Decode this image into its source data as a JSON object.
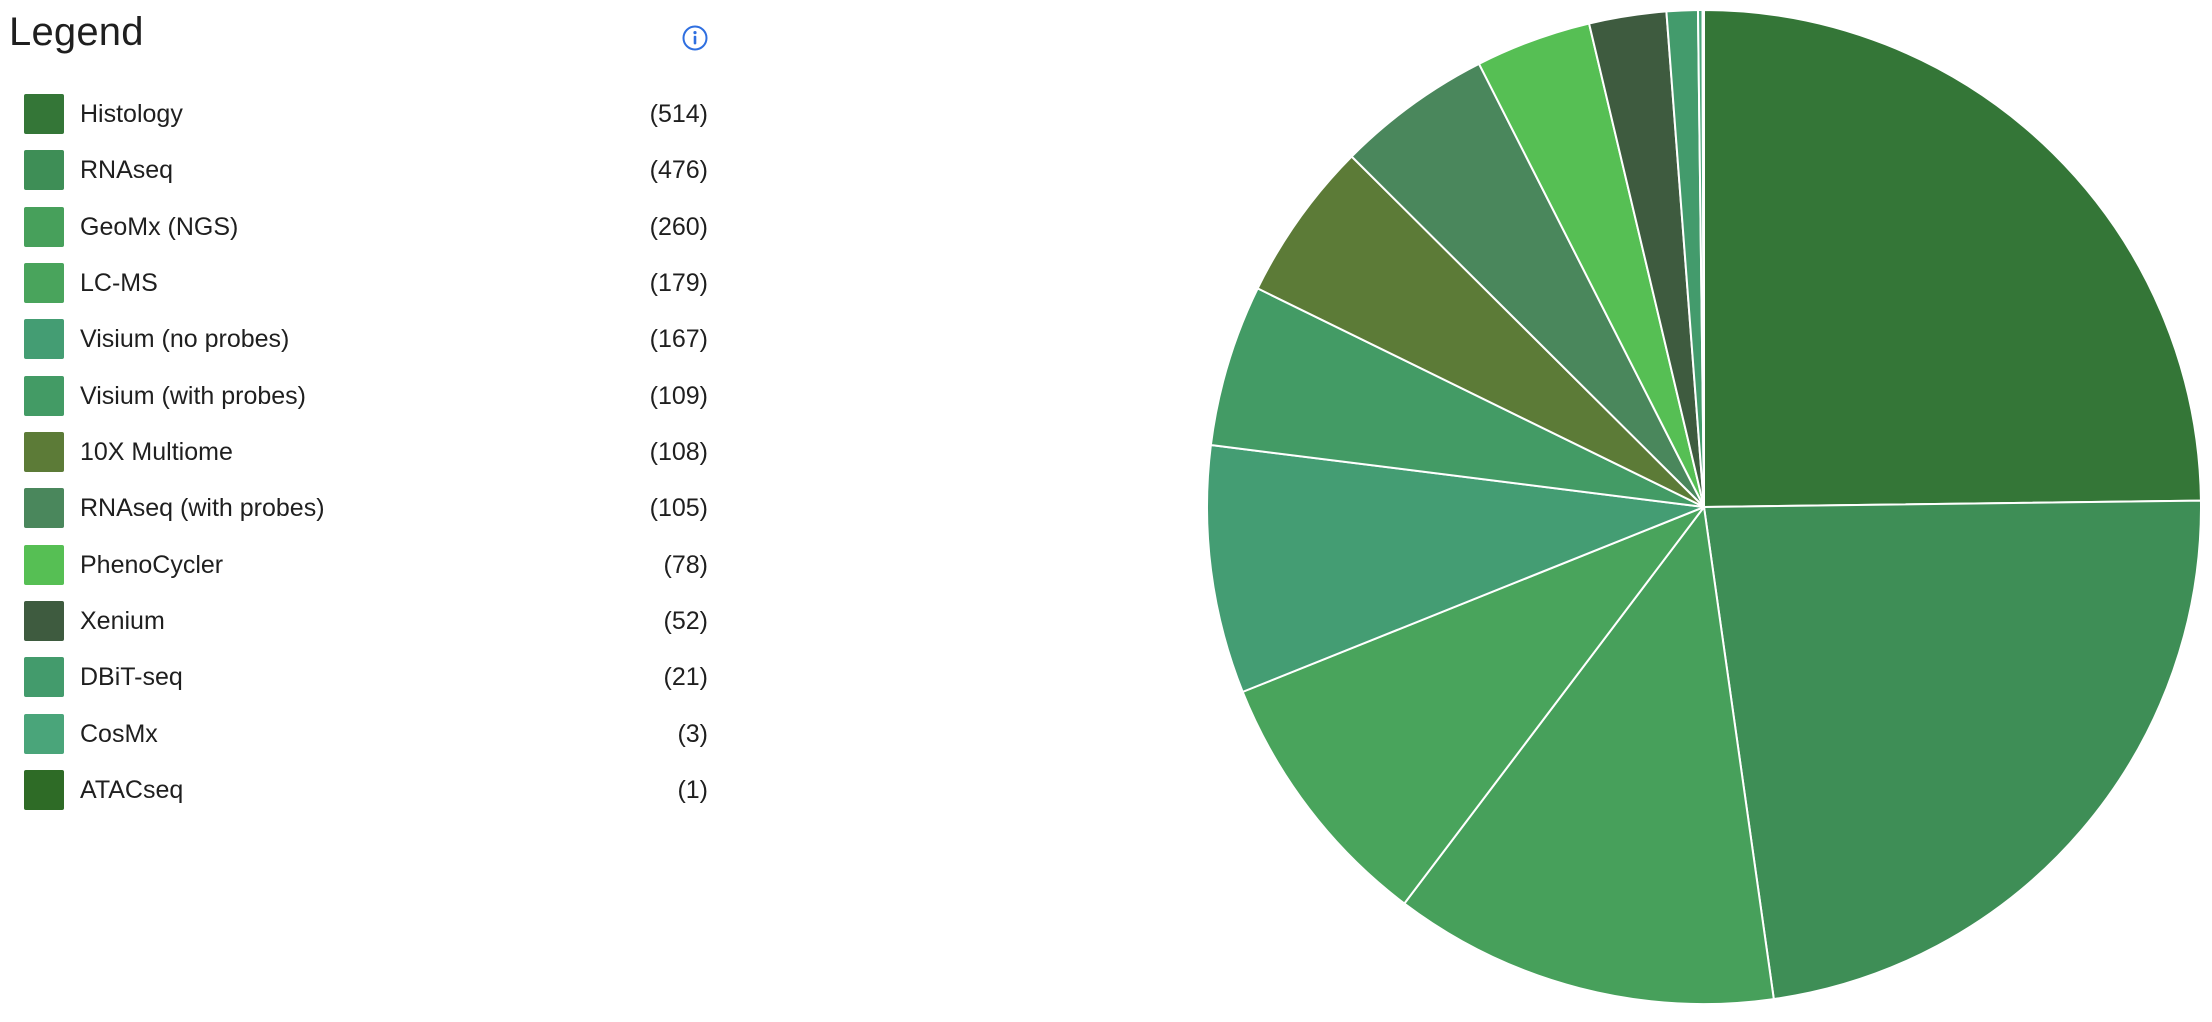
{
  "legend": {
    "title": "Legend",
    "info_icon": "info-circle-icon"
  },
  "chart_data": {
    "type": "pie",
    "title": "",
    "legend_position": "left",
    "start_angle": "12 o'clock, clockwise",
    "slices": [
      {
        "label": "Histology",
        "value": 514,
        "count_text": "(514)",
        "color": "#347637"
      },
      {
        "label": "RNAseq",
        "value": 476,
        "count_text": "(476)",
        "color": "#3e8e56"
      },
      {
        "label": "GeoMx (NGS)",
        "value": 260,
        "count_text": "(260)",
        "color": "#47a05b"
      },
      {
        "label": "LC-MS",
        "value": 179,
        "count_text": "(179)",
        "color": "#49a45c"
      },
      {
        "label": "Visium (no probes)",
        "value": 167,
        "count_text": "(167)",
        "color": "#449d73"
      },
      {
        "label": "Visium (with probes)",
        "value": 109,
        "count_text": "(109)",
        "color": "#439b65"
      },
      {
        "label": "10X Multiome",
        "value": 108,
        "count_text": "(108)",
        "color": "#5c7b37"
      },
      {
        "label": "RNAseq (with probes)",
        "value": 105,
        "count_text": "(105)",
        "color": "#4a875c"
      },
      {
        "label": "PhenoCycler",
        "value": 78,
        "count_text": "(78)",
        "color": "#56bf54"
      },
      {
        "label": "Xenium",
        "value": 52,
        "count_text": "(52)",
        "color": "#3e5b3f"
      },
      {
        "label": "DBiT-seq",
        "value": 21,
        "count_text": "(21)",
        "color": "#439b6c"
      },
      {
        "label": "CosMx",
        "value": 3,
        "count_text": "(3)",
        "color": "#4aa57a"
      },
      {
        "label": "ATACseq",
        "value": 1,
        "count_text": "(1)",
        "color": "#2e6b26"
      }
    ]
  }
}
